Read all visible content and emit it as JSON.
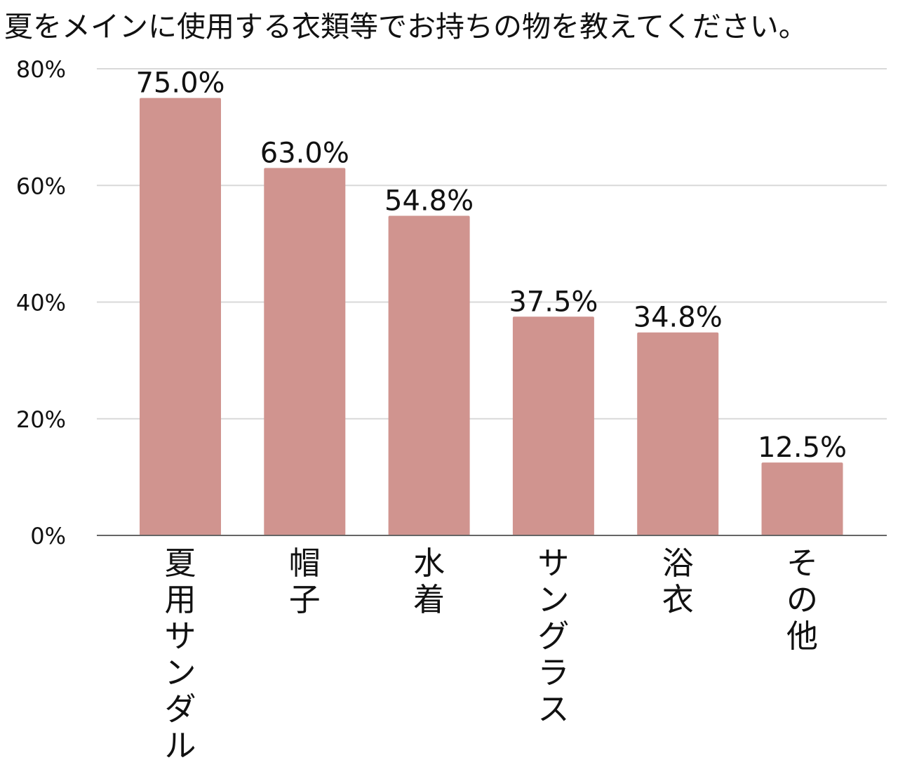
{
  "chart_data": {
    "type": "bar",
    "title": "夏をメインに使用する衣類等でお持ちの物を教えてください。",
    "categories": [
      "夏用サンダル",
      "帽子",
      "水着",
      "サングラス",
      "浴衣",
      "その他"
    ],
    "values": [
      75.0,
      63.0,
      54.8,
      37.5,
      34.8,
      12.5
    ],
    "value_labels": [
      "75.0%",
      "63.0%",
      "54.8%",
      "37.5%",
      "34.8%",
      "12.5%"
    ],
    "y_ticks": [
      0,
      20,
      40,
      60,
      80
    ],
    "y_tick_labels": [
      "0%",
      "20%",
      "40%",
      "60%",
      "80%"
    ],
    "ylim": [
      0,
      80
    ],
    "xlabel": "",
    "ylabel": "",
    "grid": true,
    "legend": "none",
    "bar_color": "#d0948f",
    "grid_color": "#d9d9d9",
    "axis_color": "#666666"
  }
}
